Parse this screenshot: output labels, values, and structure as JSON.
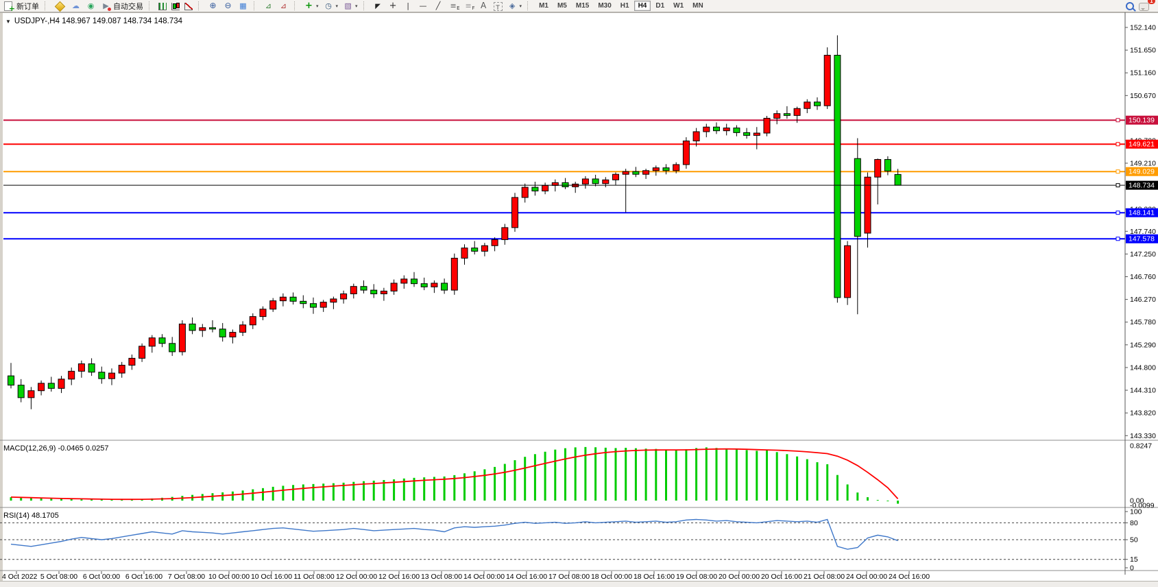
{
  "toolbar": {
    "items": [
      {
        "name": "new-order",
        "icon": "neworder",
        "label": "新订单"
      },
      {
        "sep": true
      },
      {
        "name": "market",
        "icon": "market"
      },
      {
        "name": "publish-chart",
        "icon": "publish"
      },
      {
        "name": "signals",
        "icon": "signals"
      },
      {
        "name": "auto-trading",
        "icon": "autotrade",
        "label": "自动交易"
      },
      {
        "sep": true
      },
      {
        "name": "bar-chart-mode",
        "icon": "bars"
      },
      {
        "name": "candlestick-mode",
        "icon": "candles"
      },
      {
        "name": "line-chart-mode",
        "icon": "linechart"
      },
      {
        "sep": true
      },
      {
        "name": "zoom-in",
        "icon": "zoomin"
      },
      {
        "name": "zoom-out",
        "icon": "zoomout"
      },
      {
        "name": "tile-windows",
        "icon": "tile"
      },
      {
        "sep": true
      },
      {
        "name": "indicator-window",
        "icon": "indwin"
      },
      {
        "name": "chart-shift",
        "icon": "indwin2"
      },
      {
        "sep": true
      },
      {
        "name": "add-indicator",
        "icon": "addind",
        "dropdown": true
      },
      {
        "name": "periods",
        "icon": "clock",
        "dropdown": true
      },
      {
        "name": "templates",
        "icon": "template",
        "dropdown": true
      },
      {
        "sep": true
      },
      {
        "name": "cursor",
        "icon": "cursor"
      },
      {
        "name": "crosshair",
        "icon": "crosshair"
      },
      {
        "name": "vertical-line",
        "icon": "vline"
      },
      {
        "name": "horizontal-line",
        "icon": "hline"
      },
      {
        "name": "trendline",
        "icon": "trend"
      },
      {
        "name": "fibonacci-retracement",
        "icon": "fiboe"
      },
      {
        "name": "fibonacci-fan",
        "icon": "fibof"
      },
      {
        "name": "text",
        "icon": "text"
      },
      {
        "name": "text-label",
        "icon": "label"
      },
      {
        "name": "arrows",
        "icon": "shapes",
        "dropdown": true
      },
      {
        "sep": true
      }
    ],
    "timeframes": [
      "M1",
      "M5",
      "M15",
      "M30",
      "H1",
      "H4",
      "D1",
      "W1",
      "MN"
    ],
    "active_timeframe": "H4",
    "notification_count": "1"
  },
  "chart": {
    "title": "USDJPY-,H4  148.967 149.087 148.734 148.734",
    "symbol": "USDJPY-",
    "period": "H4",
    "open": "148.967",
    "high": "149.087",
    "low": "148.734",
    "close": "148.734"
  },
  "indicators": {
    "macd_label": "MACD(12,26,9) -0.0465 0.0257",
    "rsi_label": "RSI(14) 48.1705"
  },
  "chart_data": {
    "type": "candlestick",
    "symbol": "USDJPY-",
    "timeframe": "H4",
    "colors": {
      "bull_body": "#fe0000",
      "bear_body": "#00d200",
      "wick": "#000000",
      "macd_histogram": "#00cc00",
      "macd_signal": "#ff0000",
      "rsi_line": "#3e77c9",
      "background": "#ffffff"
    },
    "price_axis": {
      "visible_ticks": [
        "152.140",
        "151.650",
        "151.160",
        "150.670",
        "149.700",
        "149.210",
        "148.220",
        "147.740",
        "147.250",
        "146.760",
        "146.270",
        "145.780",
        "145.290",
        "144.800",
        "144.310",
        "143.820",
        "143.330"
      ],
      "tick_step": 0.49,
      "min": 143.33,
      "max": 152.38
    },
    "hlines": [
      {
        "price": 150.139,
        "label": "150.139",
        "color": "#c8103c",
        "width": 2
      },
      {
        "price": 149.621,
        "label": "149.621",
        "color": "#fe0000",
        "width": 2
      },
      {
        "price": 149.029,
        "label": "149.029",
        "color": "#ff9c00",
        "width": 2
      },
      {
        "price": 148.734,
        "label": "148.734",
        "color": "#000000",
        "width": 1,
        "current_price": true
      },
      {
        "price": 148.141,
        "label": "148.141",
        "color": "#0000fe",
        "width": 2
      },
      {
        "price": 147.578,
        "label": "147.578",
        "color": "#0000fe",
        "width": 2
      }
    ],
    "time_labels": [
      "4 Oct 2022",
      "5 Oct 08:00",
      "6 Oct 00:00",
      "6 Oct 16:00",
      "7 Oct 08:00",
      "10 Oct 00:00",
      "10 Oct 16:00",
      "11 Oct 08:00",
      "12 Oct 00:00",
      "12 Oct 16:00",
      "13 Oct 08:00",
      "14 Oct 00:00",
      "14 Oct 16:00",
      "17 Oct 08:00",
      "18 Oct 00:00",
      "18 Oct 16:00",
      "19 Oct 08:00",
      "20 Oct 00:00",
      "20 Oct 16:00",
      "21 Oct 08:00",
      "24 Oct 00:00",
      "24 Oct 16:00"
    ],
    "candles": [
      [
        144.62,
        144.9,
        144.35,
        144.42
      ],
      [
        144.42,
        144.55,
        144.05,
        144.15
      ],
      [
        144.15,
        144.38,
        143.9,
        144.3
      ],
      [
        144.3,
        144.52,
        144.2,
        144.46
      ],
      [
        144.46,
        144.6,
        144.28,
        144.35
      ],
      [
        144.35,
        144.62,
        144.25,
        144.55
      ],
      [
        144.55,
        144.8,
        144.42,
        144.72
      ],
      [
        144.72,
        144.95,
        144.58,
        144.88
      ],
      [
        144.88,
        145.0,
        144.62,
        144.7
      ],
      [
        144.7,
        144.82,
        144.45,
        144.56
      ],
      [
        144.56,
        144.78,
        144.42,
        144.68
      ],
      [
        144.68,
        144.92,
        144.58,
        144.85
      ],
      [
        144.85,
        145.08,
        144.75,
        145.0
      ],
      [
        145.0,
        145.32,
        144.92,
        145.26
      ],
      [
        145.26,
        145.5,
        145.12,
        145.44
      ],
      [
        145.44,
        145.52,
        145.24,
        145.32
      ],
      [
        145.32,
        145.46,
        145.05,
        145.14
      ],
      [
        145.14,
        145.82,
        145.06,
        145.74
      ],
      [
        145.74,
        145.88,
        145.52,
        145.6
      ],
      [
        145.6,
        145.74,
        145.46,
        145.66
      ],
      [
        145.66,
        145.82,
        145.56,
        145.63
      ],
      [
        145.63,
        145.76,
        145.36,
        145.46
      ],
      [
        145.46,
        145.62,
        145.32,
        145.56
      ],
      [
        145.56,
        145.8,
        145.48,
        145.72
      ],
      [
        145.72,
        145.97,
        145.63,
        145.9
      ],
      [
        145.9,
        146.12,
        145.82,
        146.06
      ],
      [
        146.06,
        146.3,
        146.0,
        146.24
      ],
      [
        146.24,
        146.4,
        146.12,
        146.32
      ],
      [
        146.32,
        146.42,
        146.16,
        146.23
      ],
      [
        146.23,
        146.36,
        146.08,
        146.18
      ],
      [
        146.18,
        146.31,
        145.96,
        146.1
      ],
      [
        146.1,
        146.26,
        146.0,
        146.21
      ],
      [
        146.21,
        146.33,
        146.06,
        146.28
      ],
      [
        146.28,
        146.46,
        146.18,
        146.39
      ],
      [
        146.39,
        146.61,
        146.29,
        146.55
      ],
      [
        146.55,
        146.68,
        146.4,
        146.47
      ],
      [
        146.47,
        146.6,
        146.3,
        146.39
      ],
      [
        146.39,
        146.52,
        146.24,
        146.45
      ],
      [
        146.45,
        146.7,
        146.37,
        146.62
      ],
      [
        146.62,
        146.79,
        146.5,
        146.71
      ],
      [
        146.71,
        146.86,
        146.54,
        146.61
      ],
      [
        146.61,
        146.74,
        146.47,
        146.54
      ],
      [
        146.54,
        146.68,
        146.41,
        146.62
      ],
      [
        146.62,
        146.72,
        146.39,
        146.47
      ],
      [
        146.47,
        147.26,
        146.37,
        147.16
      ],
      [
        147.16,
        147.46,
        147.02,
        147.38
      ],
      [
        147.38,
        147.53,
        147.24,
        147.31
      ],
      [
        147.31,
        147.49,
        147.2,
        147.43
      ],
      [
        147.43,
        147.61,
        147.31,
        147.56
      ],
      [
        147.56,
        147.9,
        147.45,
        147.82
      ],
      [
        147.82,
        148.57,
        147.73,
        148.47
      ],
      [
        148.47,
        148.77,
        148.36,
        148.69
      ],
      [
        148.69,
        148.81,
        148.51,
        148.61
      ],
      [
        148.61,
        148.79,
        148.54,
        148.73
      ],
      [
        148.73,
        148.86,
        148.6,
        148.79
      ],
      [
        148.79,
        148.89,
        148.65,
        148.7
      ],
      [
        148.7,
        148.81,
        148.57,
        148.76
      ],
      [
        148.76,
        148.93,
        148.66,
        148.87
      ],
      [
        148.87,
        148.96,
        148.71,
        148.77
      ],
      [
        148.77,
        148.91,
        148.69,
        148.85
      ],
      [
        148.85,
        149.01,
        148.74,
        148.97
      ],
      [
        148.97,
        149.09,
        148.15,
        149.03
      ],
      [
        149.03,
        149.13,
        148.91,
        148.97
      ],
      [
        148.97,
        149.09,
        148.87,
        149.05
      ],
      [
        149.05,
        149.16,
        148.94,
        149.11
      ],
      [
        149.11,
        149.19,
        148.97,
        149.05
      ],
      [
        149.05,
        149.23,
        148.99,
        149.18
      ],
      [
        149.18,
        149.77,
        149.09,
        149.69
      ],
      [
        149.69,
        149.97,
        149.57,
        149.89
      ],
      [
        149.89,
        150.06,
        149.77,
        149.99
      ],
      [
        149.99,
        150.09,
        149.84,
        149.91
      ],
      [
        149.91,
        150.06,
        149.81,
        149.97
      ],
      [
        149.97,
        150.03,
        149.79,
        149.87
      ],
      [
        149.87,
        149.97,
        149.74,
        149.81
      ],
      [
        149.81,
        149.99,
        149.51,
        149.86
      ],
      [
        149.86,
        150.23,
        149.79,
        150.18
      ],
      [
        150.18,
        150.35,
        150.05,
        150.28
      ],
      [
        150.28,
        150.44,
        150.17,
        150.24
      ],
      [
        150.24,
        150.43,
        150.08,
        150.39
      ],
      [
        150.39,
        150.59,
        150.29,
        150.53
      ],
      [
        150.53,
        150.63,
        150.36,
        150.45
      ],
      [
        150.45,
        151.71,
        150.38,
        151.54
      ],
      [
        151.54,
        151.97,
        146.2,
        146.31
      ],
      [
        146.31,
        147.53,
        146.15,
        147.43
      ],
      [
        149.31,
        149.75,
        145.95,
        147.63
      ],
      [
        147.7,
        149.01,
        147.39,
        148.91
      ],
      [
        148.91,
        149.31,
        148.32,
        149.29
      ],
      [
        149.29,
        149.36,
        148.95,
        149.04
      ],
      [
        148.967,
        149.087,
        148.734,
        148.734
      ]
    ],
    "macd": {
      "label": "MACD(12,26,9)",
      "current_values": "-0.0465 0.0257",
      "axis_labels": [
        "0.8247",
        "0.00",
        "-0.0099"
      ],
      "max": 0.8247,
      "histogram": [
        0.05,
        0.044,
        0.038,
        0.033,
        0.028,
        0.025,
        0.022,
        0.019,
        0.017,
        0.015,
        0.014,
        0.015,
        0.018,
        0.024,
        0.032,
        0.042,
        0.055,
        0.07,
        0.085,
        0.098,
        0.11,
        0.122,
        0.135,
        0.15,
        0.168,
        0.185,
        0.205,
        0.22,
        0.232,
        0.24,
        0.246,
        0.252,
        0.258,
        0.266,
        0.278,
        0.288,
        0.296,
        0.305,
        0.315,
        0.328,
        0.338,
        0.345,
        0.352,
        0.358,
        0.378,
        0.405,
        0.435,
        0.465,
        0.5,
        0.545,
        0.6,
        0.65,
        0.69,
        0.725,
        0.758,
        0.778,
        0.79,
        0.796,
        0.792,
        0.785,
        0.78,
        0.784,
        0.778,
        0.772,
        0.768,
        0.76,
        0.754,
        0.764,
        0.78,
        0.79,
        0.782,
        0.772,
        0.762,
        0.75,
        0.74,
        0.744,
        0.72,
        0.69,
        0.655,
        0.615,
        0.57,
        0.54,
        0.38,
        0.24,
        0.12,
        0.05,
        0.01,
        -0.01,
        -0.046
      ],
      "signal": [
        0.052,
        0.048,
        0.044,
        0.04,
        0.036,
        0.032,
        0.029,
        0.026,
        0.023,
        0.021,
        0.019,
        0.018,
        0.018,
        0.019,
        0.021,
        0.025,
        0.03,
        0.037,
        0.045,
        0.054,
        0.064,
        0.074,
        0.085,
        0.097,
        0.11,
        0.124,
        0.139,
        0.154,
        0.168,
        0.181,
        0.193,
        0.204,
        0.215,
        0.225,
        0.235,
        0.245,
        0.254,
        0.263,
        0.272,
        0.282,
        0.292,
        0.301,
        0.31,
        0.318,
        0.328,
        0.341,
        0.357,
        0.375,
        0.396,
        0.421,
        0.451,
        0.484,
        0.518,
        0.552,
        0.586,
        0.618,
        0.648,
        0.674,
        0.696,
        0.714,
        0.727,
        0.737,
        0.744,
        0.749,
        0.752,
        0.753,
        0.753,
        0.754,
        0.758,
        0.763,
        0.766,
        0.767,
        0.766,
        0.762,
        0.757,
        0.753,
        0.748,
        0.742,
        0.734,
        0.724,
        0.712,
        0.698,
        0.66,
        0.6,
        0.52,
        0.42,
        0.31,
        0.19,
        0.026
      ]
    },
    "rsi": {
      "label": "RSI(14)",
      "current_value": "48.1705",
      "levels": [
        80,
        50,
        15
      ],
      "axis_labels": [
        "100",
        "80",
        "50",
        "15",
        "0"
      ],
      "values": [
        42,
        40,
        38,
        41,
        44,
        47,
        51,
        54,
        52,
        50,
        52,
        55,
        58,
        61,
        64,
        62,
        60,
        66,
        64,
        63,
        62,
        60,
        62,
        64,
        66,
        68,
        70,
        71,
        69,
        67,
        65,
        66,
        67,
        68,
        70,
        68,
        66,
        67,
        68,
        69,
        70,
        68,
        67,
        64,
        71,
        73,
        72,
        73,
        74,
        76,
        79,
        81,
        79,
        80,
        81,
        79,
        80,
        82,
        80,
        81,
        82,
        83,
        81,
        82,
        83,
        81,
        82,
        85,
        86,
        85,
        83,
        84,
        82,
        81,
        80,
        82,
        84,
        83,
        82,
        83,
        81,
        86,
        38,
        33,
        36,
        53,
        58,
        55,
        48.2
      ]
    }
  }
}
